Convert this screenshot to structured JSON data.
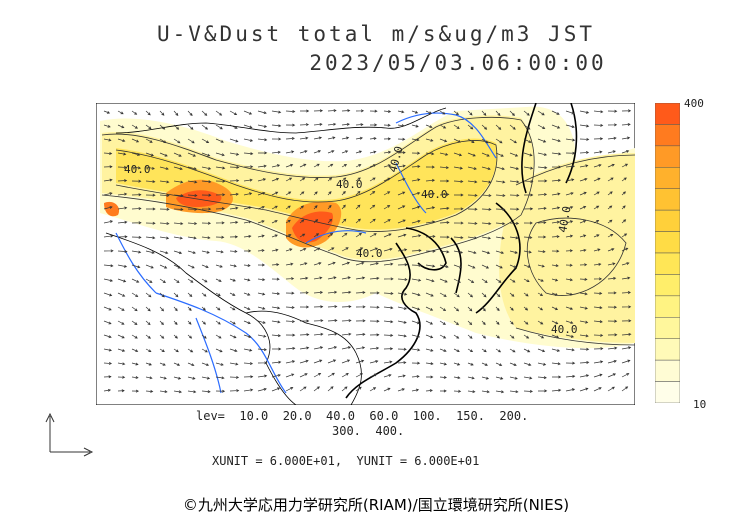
{
  "title": "U-V&Dust total m/s&ug/m3 JST",
  "datetime": "2023/05/03.06:00:00",
  "colorbar": {
    "max_label": "400",
    "min_label": "10",
    "colors": [
      "#ff5a1a",
      "#ff7b1f",
      "#ff9a26",
      "#ffb12c",
      "#ffc232",
      "#ffd03a",
      "#ffdc45",
      "#ffe656",
      "#ffee6a",
      "#fff382",
      "#fff79c",
      "#fffab8",
      "#fffcd4",
      "#fffee9"
    ]
  },
  "levels_line1": "lev=  10.0  20.0  40.0  60.0  100.  150.  200.",
  "levels_line2": "300.  400.",
  "units": "XUNIT = 6.000E+01,  YUNIT = 6.000E+01",
  "contour_labels": [
    "40.0",
    "40.0",
    "40.0",
    "40.0",
    "40.0",
    "40.0",
    "40.0"
  ],
  "copyright": "©九州大学応用力学研究所(RIAM)/国立環境研究所(NIES)"
}
